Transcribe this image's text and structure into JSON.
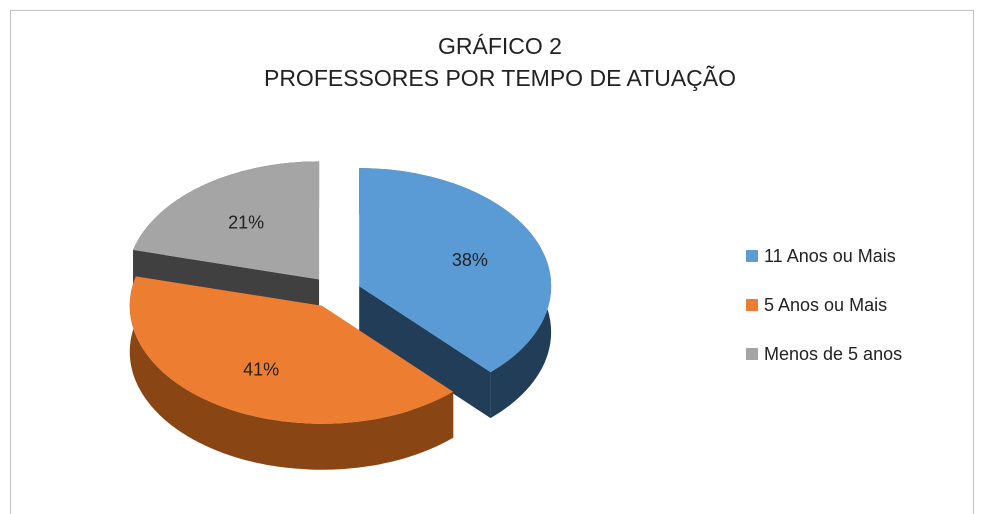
{
  "chart_data": {
    "type": "pie",
    "title": "GRÁFICO 2",
    "subtitle": "PROFESSORES POR TEMPO DE ATUAÇÃO",
    "categories": [
      "11 Anos ou Mais",
      "5 Anos ou Mais",
      "Menos de 5 anos"
    ],
    "values": [
      38,
      41,
      21
    ],
    "value_labels": [
      "38%",
      "41%",
      "21%"
    ],
    "colors": [
      "#5b9bd5",
      "#ed7d31",
      "#a5a5a5"
    ],
    "side_colors": [
      "#223d58",
      "#8a4514",
      "#404040"
    ],
    "legend": "right"
  }
}
